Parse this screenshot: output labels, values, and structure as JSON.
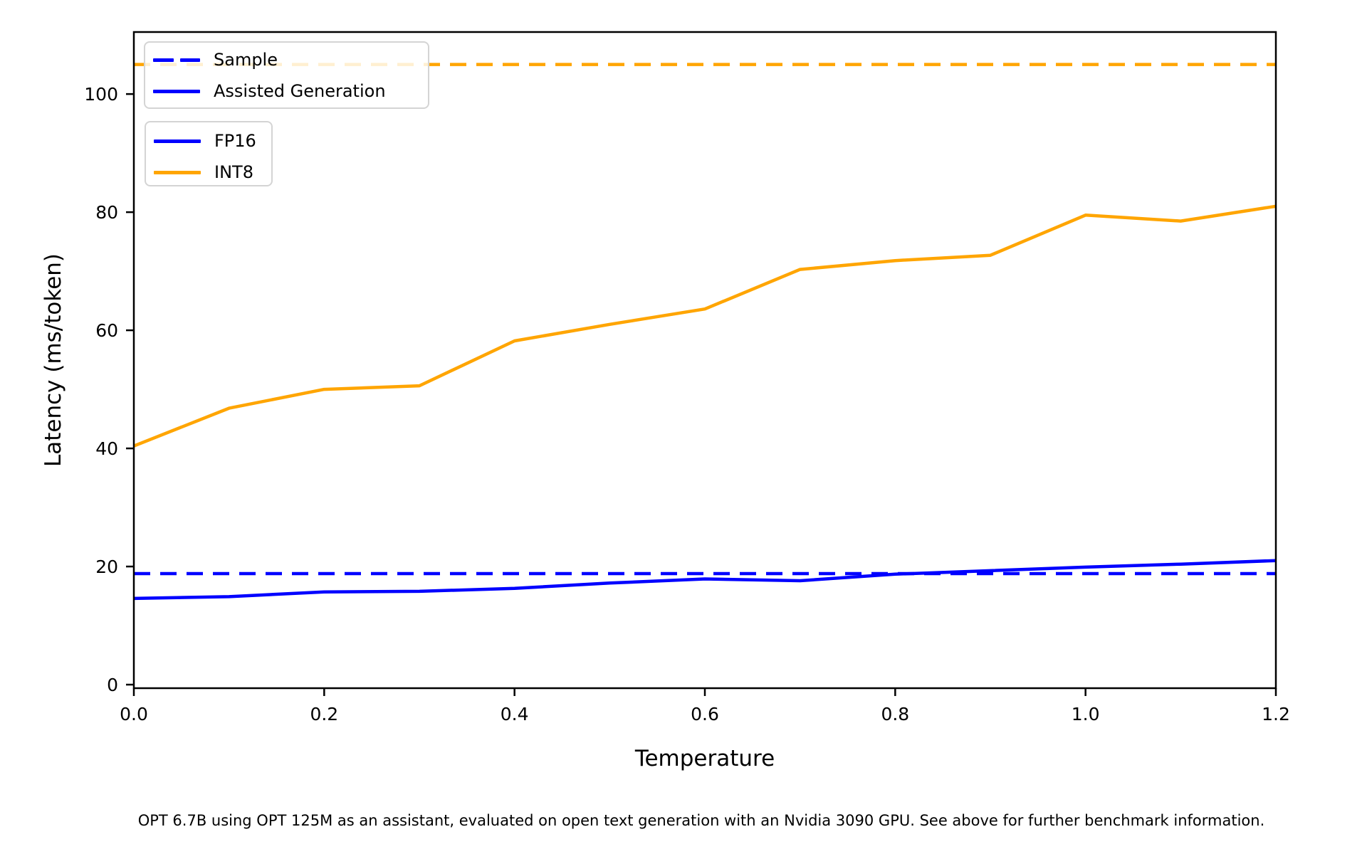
{
  "figure": {
    "xlabel": "Temperature",
    "ylabel": "Latency (ms/token)",
    "caption": "OPT 6.7B using OPT 125M as an assistant, evaluated on open text generation with an Nvidia 3090 GPU. See above for further benchmark information."
  },
  "legends": [
    {
      "items": [
        {
          "label": "Sample",
          "color": "#0000ff",
          "linestyle": "dashed"
        },
        {
          "label": "Assisted Generation",
          "color": "#0000ff",
          "linestyle": "solid"
        }
      ]
    },
    {
      "items": [
        {
          "label": "FP16",
          "color": "#0000ff",
          "linestyle": "solid"
        },
        {
          "label": "INT8",
          "color": "#ffa500",
          "linestyle": "solid"
        }
      ]
    }
  ],
  "chart_data": {
    "type": "line",
    "title": "",
    "xlabel": "Temperature",
    "ylabel": "Latency (ms/token)",
    "xlim": [
      0.0,
      1.2
    ],
    "ylim": [
      -0.6,
      110.5
    ],
    "xticks": [
      "0.0",
      "0.2",
      "0.4",
      "0.6",
      "0.8",
      "1.0",
      "1.2"
    ],
    "yticks": [
      0,
      20,
      40,
      60,
      80,
      100
    ],
    "grid": false,
    "legend_position": "upper left",
    "x": [
      0.0,
      0.1,
      0.2,
      0.3,
      0.4,
      0.5,
      0.6,
      0.7,
      0.8,
      0.9,
      1.0,
      1.1,
      1.2
    ],
    "series": [
      {
        "name": "Sample INT8",
        "role": "hline",
        "linestyle": "dashed",
        "color": "#ffa500",
        "value": 105.0
      },
      {
        "name": "Sample FP16",
        "role": "hline",
        "linestyle": "dashed",
        "color": "#0000ff",
        "value": 18.8
      },
      {
        "name": "Assisted Generation INT8",
        "role": "line",
        "linestyle": "solid",
        "color": "#ffa500",
        "values": [
          40.4,
          46.8,
          50.0,
          50.6,
          58.2,
          61.0,
          63.6,
          70.3,
          71.8,
          72.7,
          79.5,
          78.5,
          81.0
        ]
      },
      {
        "name": "Assisted Generation FP16",
        "role": "line",
        "linestyle": "solid",
        "color": "#0000ff",
        "values": [
          14.6,
          14.9,
          15.7,
          15.8,
          16.3,
          17.2,
          17.9,
          17.6,
          18.7,
          19.3,
          19.9,
          20.4,
          21.0
        ]
      }
    ]
  }
}
